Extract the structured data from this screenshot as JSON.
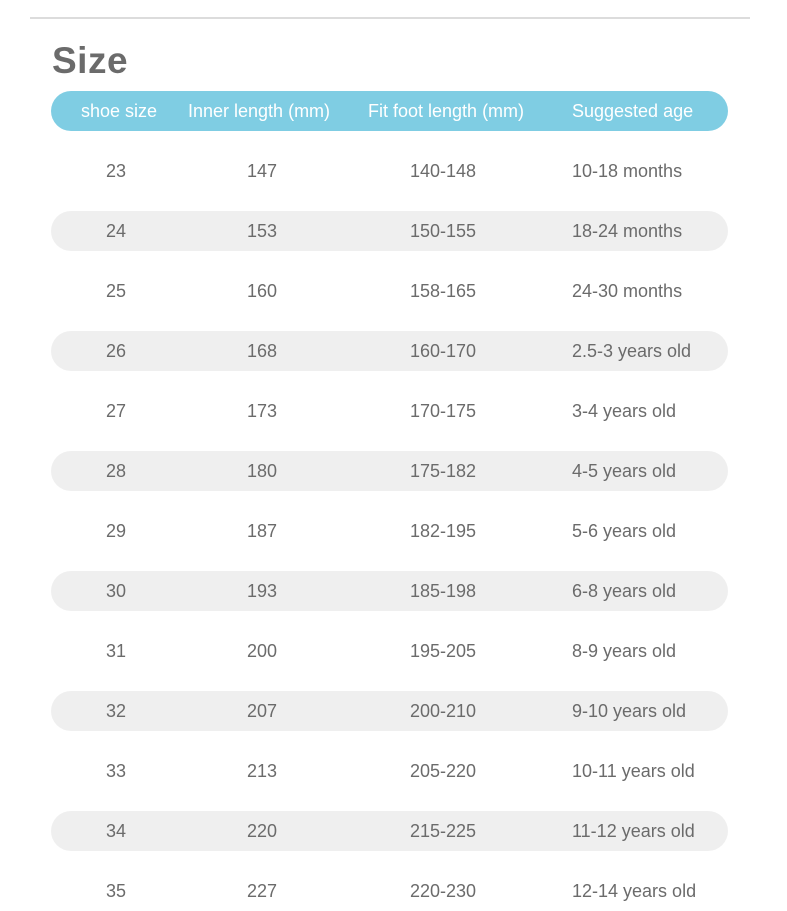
{
  "title": "Size",
  "columns": [
    "shoe size",
    "Inner length (mm)",
    "Fit foot length (mm)",
    "Suggested age"
  ],
  "rows": [
    [
      "23",
      "147",
      "140-148",
      "10-18 months"
    ],
    [
      "24",
      "153",
      "150-155",
      "18-24 months"
    ],
    [
      "25",
      "160",
      "158-165",
      "24-30 months"
    ],
    [
      "26",
      "168",
      "160-170",
      "2.5-3 years old"
    ],
    [
      "27",
      "173",
      "170-175",
      "3-4 years old"
    ],
    [
      "28",
      "180",
      "175-182",
      "4-5 years old"
    ],
    [
      "29",
      "187",
      "182-195",
      "5-6 years old"
    ],
    [
      "30",
      "193",
      "185-198",
      "6-8 years old"
    ],
    [
      "31",
      "200",
      "195-205",
      "8-9 years old"
    ],
    [
      "32",
      "207",
      "200-210",
      "9-10 years old"
    ],
    [
      "33",
      "213",
      "205-220",
      "10-11 years old"
    ],
    [
      "34",
      "220",
      "215-225",
      "11-12 years old"
    ],
    [
      "35",
      "227",
      "220-230",
      "12-14 years old"
    ]
  ],
  "colors": {
    "header_bg": "#7fcde3",
    "stripe_bg": "#efefef",
    "text": "#6b6b6b"
  }
}
